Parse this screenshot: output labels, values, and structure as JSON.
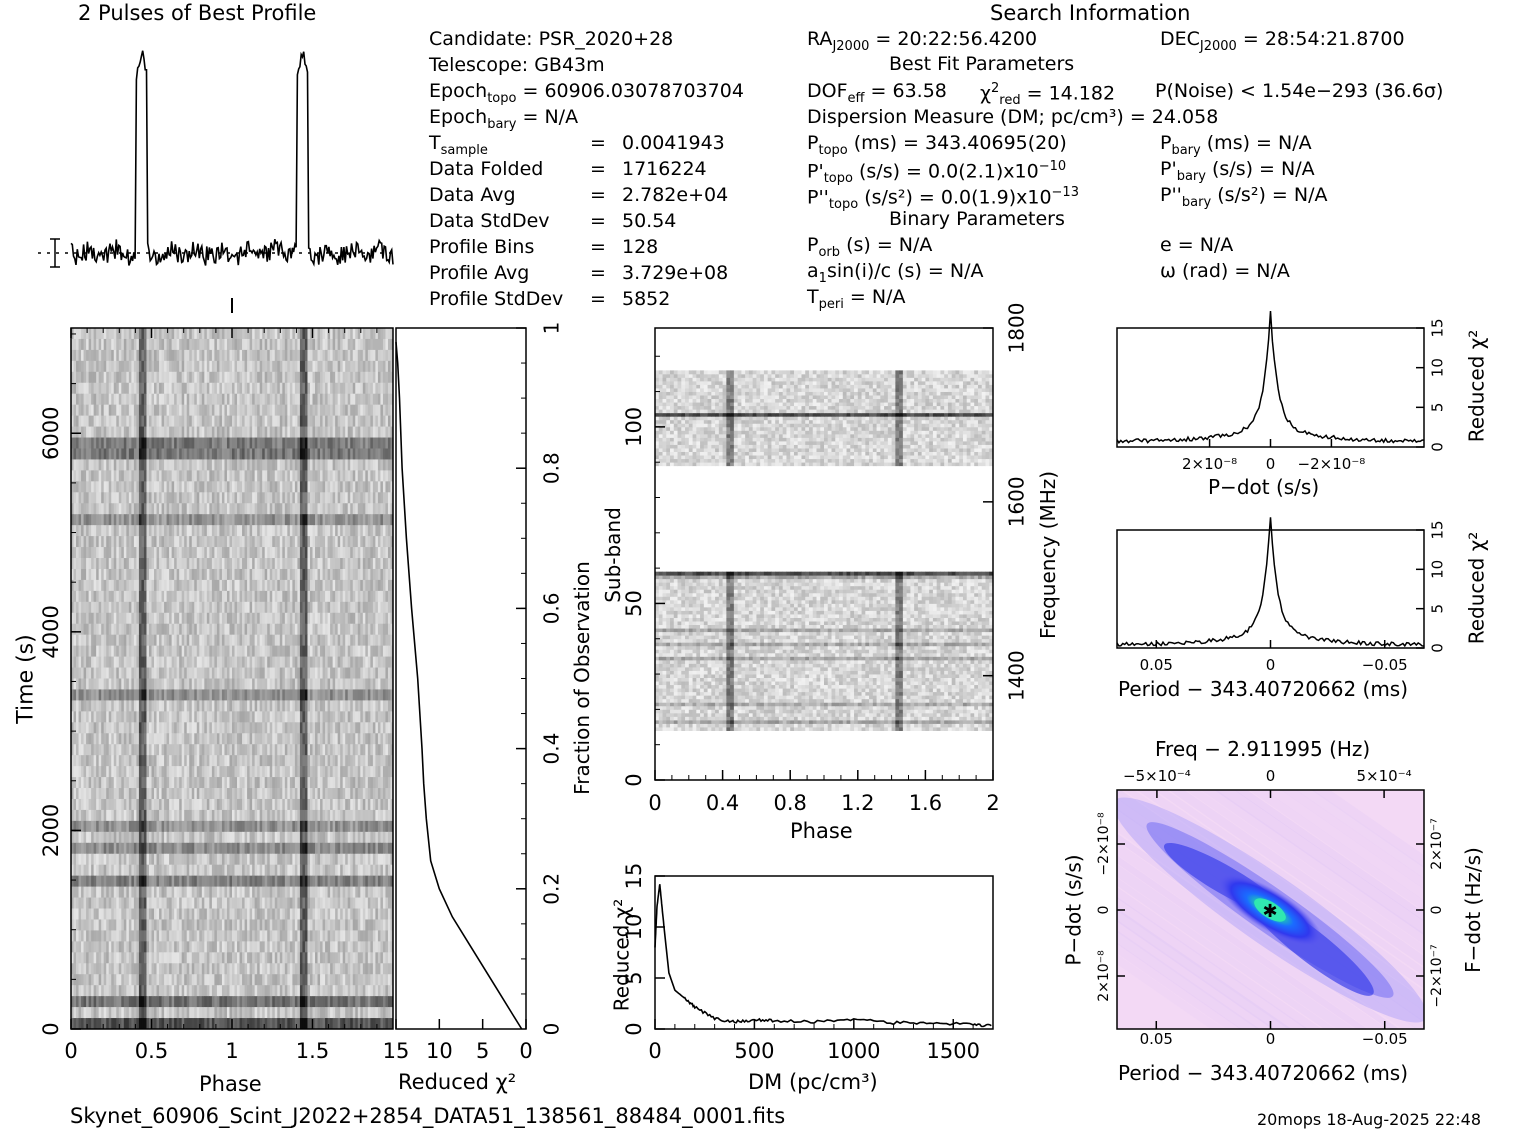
{
  "header": {
    "profile_title": "2 Pulses of Best Profile",
    "search_title": "Search Information"
  },
  "info": {
    "candidate": "Candidate:  PSR_2020+28",
    "telescope": "Telescope:  GB43m",
    "epoch_topo_label": "Epoch",
    "epoch_topo_sub": "topo",
    "epoch_topo_val": " = 60906.03078703704",
    "epoch_bary_label": "Epoch",
    "epoch_bary_sub": "bary",
    "epoch_bary_val": " = N/A",
    "rows": [
      {
        "label": "T",
        "sub": "sample",
        "val": "0.0041943"
      },
      {
        "label": "Data Folded",
        "sub": "",
        "val": "1716224"
      },
      {
        "label": "Data Avg",
        "sub": "",
        "val": "2.782e+04"
      },
      {
        "label": "Data StdDev",
        "sub": "",
        "val": "50.54"
      },
      {
        "label": "Profile Bins",
        "sub": "",
        "val": "128"
      },
      {
        "label": "Profile Avg",
        "sub": "",
        "val": "3.729e+08"
      },
      {
        "label": "Profile StdDev",
        "sub": "",
        "val": "5852"
      }
    ],
    "equals": "="
  },
  "search": {
    "ra_label": "RA",
    "ra_sub": "J2000",
    "ra_val": " = 20:22:56.4200",
    "dec_label": "DEC",
    "dec_sub": "J2000",
    "dec_val": " = 28:54:21.8700",
    "best_fit": "Best Fit Parameters",
    "dof_label": "DOF",
    "dof_sub": "eff",
    "dof_val": " = 63.58",
    "chi_label": "χ",
    "chi_sup": "2",
    "chi_sub": "red",
    "chi_val": " = 14.182",
    "pnoise": "P(Noise) < 1.54e−293   (36.6σ)",
    "dm": "Dispersion Measure (DM; pc/cm³) = 24.058",
    "ptopo_label": "P",
    "ptopo_sub": "topo",
    "ptopo_val": " (ms) =  343.40695(20)",
    "pbary_label": "P",
    "pbary_sub": "bary",
    "pbary_val": " (ms) = N/A",
    "pdtopo_label": "P'",
    "pdtopo_sub": "topo",
    "pdtopo_val": " (s/s) = 0.0(2.1)x10",
    "pdtopo_exp": "−10",
    "pdbary_label": "P'",
    "pdbary_sub": "bary",
    "pdbary_val": " (s/s) = N/A",
    "pddtopo_label": "P''",
    "pddtopo_sub": "topo",
    "pddtopo_val": " (s/s²) = 0.0(1.9)x10",
    "pddtopo_exp": "−13",
    "pddbary_label": "P''",
    "pddbary_sub": "bary",
    "pddbary_val": " (s/s²) = N/A",
    "binary": "Binary Parameters",
    "porb_label": "P",
    "porb_sub": "orb",
    "porb_val": " (s) = N/A",
    "e": "e = N/A",
    "a1": "a",
    "a1_sub": "1",
    "a1_val": "sin(i)/c (s) = N/A",
    "omega": "ω (rad) = N/A",
    "tperi_label": "T",
    "tperi_sub": "peri",
    "tperi_val": " = N/A"
  },
  "footer": {
    "filename": "Skynet_60906_Scint_J2022+2854_DATA51_138561_88484_0001.fits",
    "stamp": "20mops 18-Aug-2025 22:48"
  },
  "axes": {
    "time_ylabel": "Time (s)",
    "time_ticks": [
      "0",
      "2000",
      "4000",
      "6000"
    ],
    "phase_xlabel": "Phase",
    "phase_ticks": [
      "0",
      "0.5",
      "1",
      "1.5"
    ],
    "redchi_xlabel": "Reduced χ²",
    "redchi_ticks": [
      "15",
      "10",
      "5",
      "0"
    ],
    "frac_ylabel": "Fraction of Observation",
    "frac_ticks": [
      "0.2",
      "0.4",
      "0.6",
      "0.8",
      "1"
    ],
    "subband_ylabel": "Sub-band",
    "subband_ticks": [
      "0",
      "50",
      "100"
    ],
    "subband_xlabel": "Phase",
    "subband_xticks": [
      "0",
      "0.4",
      "0.8",
      "1.2",
      "1.6",
      "2"
    ],
    "freq_ylabel": "Frequency (MHz)",
    "freq_ticks": [
      "1400",
      "1600",
      "1800"
    ],
    "dm_xlabel": "DM (pc/cm³)",
    "dm_ticks": [
      "0",
      "500",
      "1000",
      "1500"
    ],
    "dm_ylabel": "Reduced χ²",
    "dm_yticks": [
      "0",
      "5",
      "10",
      "15"
    ],
    "pdot_xlabel": "P−dot (s/s)",
    "pdot_xticks": [
      "2×10⁻⁸",
      "0",
      "−2×10⁻⁸"
    ],
    "pdot_ylabel": "Reduced χ²",
    "pdot_yticks": [
      "0",
      "5",
      "10",
      "15"
    ],
    "period_xlabel": "Period − 343.40720662 (ms)",
    "period_xticks": [
      "0.05",
      "0",
      "−0.05"
    ],
    "period_ylabel": "Reduced χ²",
    "period_yticks": [
      "0",
      "5",
      "10",
      "15"
    ],
    "freq_title": "Freq − 2.911995 (Hz)",
    "freq_top_ticks": [
      "−5×10⁻⁴",
      "0",
      "5×10⁻⁴"
    ],
    "ppd_xlabel": "Period − 343.40720662 (ms)",
    "ppd_xticks": [
      "0.05",
      "0",
      "−0.05"
    ],
    "ppd_ylabel": "P−dot (s/s)",
    "ppd_yticks": [
      "−2×10⁻⁸",
      "0",
      "2×10⁻⁸"
    ],
    "ppd_rlabel": "F−dot (Hz/s)",
    "ppd_rticks": [
      "2×10⁻⁷",
      "0",
      "−2×10⁻⁷"
    ]
  },
  "chart_data": [
    {
      "type": "line",
      "title": "2 Pulses of Best Profile",
      "x_range": [
        0,
        2
      ],
      "pulse_phases": [
        0.44,
        1.44
      ]
    },
    {
      "type": "heatmap",
      "xlabel": "Phase",
      "ylabel": "Time (s)",
      "xlim": [
        0,
        2
      ],
      "ylim": [
        0,
        7060
      ]
    },
    {
      "type": "line",
      "xlabel": "Reduced χ²",
      "ylabel": "Fraction of Observation",
      "xlim": [
        15,
        0
      ],
      "ylim": [
        0,
        1
      ],
      "x": [
        0.5,
        1.5,
        3.5,
        6.5,
        8.5,
        10,
        11,
        11.5,
        11.8,
        12,
        12.5,
        13.2,
        13.8,
        14.3,
        14.6,
        14.8,
        15
      ],
      "y": [
        0.0,
        0.02,
        0.06,
        0.12,
        0.16,
        0.2,
        0.24,
        0.3,
        0.35,
        0.4,
        0.5,
        0.6,
        0.7,
        0.8,
        0.9,
        0.95,
        0.98
      ]
    },
    {
      "type": "heatmap",
      "xlabel": "Phase",
      "ylabel": "Sub-band",
      "xlim": [
        0,
        2
      ],
      "ylim": [
        0,
        128
      ],
      "y2label": "Frequency (MHz)",
      "y2lim": [
        1280,
        1800
      ]
    },
    {
      "type": "line",
      "xlabel": "DM (pc/cm³)",
      "ylabel": "Reduced χ²",
      "xlim": [
        0,
        1700
      ],
      "ylim": [
        0,
        15
      ],
      "x": [
        0,
        10,
        24,
        40,
        70,
        100,
        150,
        200,
        300,
        400,
        500,
        600,
        800,
        1000,
        1200,
        1400,
        1600,
        1700
      ],
      "y": [
        8,
        12,
        14.2,
        11,
        5.5,
        3.8,
        3.0,
        2.2,
        1.0,
        0.7,
        0.9,
        0.8,
        0.7,
        1.0,
        0.6,
        0.6,
        0.4,
        0.3
      ]
    },
    {
      "type": "line",
      "xlabel": "P−dot (s/s)",
      "ylabel": "Reduced χ²",
      "ylim": [
        0,
        15
      ],
      "x": [
        -1,
        -0.6,
        -0.3,
        -0.15,
        -0.05,
        0,
        0.05,
        0.15,
        0.3,
        0.6,
        1
      ],
      "y": [
        0.6,
        1.3,
        2.5,
        4.0,
        7.0,
        14.2,
        7.0,
        4.0,
        2.3,
        1.2,
        0.6
      ]
    },
    {
      "type": "line",
      "xlabel": "Period − 343.40720662 (ms)",
      "ylabel": "Reduced χ²",
      "xlim": [
        0.065,
        -0.065
      ],
      "ylim": [
        0,
        15
      ],
      "x": [
        0.065,
        0.04,
        0.02,
        0.01,
        0.005,
        0,
        -0.005,
        -0.01,
        -0.02,
        -0.04,
        -0.065
      ],
      "y": [
        0.3,
        0.6,
        1.5,
        3.5,
        6.5,
        14.2,
        6.5,
        3.0,
        1.2,
        0.5,
        0.3
      ]
    },
    {
      "type": "heatmap",
      "title": "Freq − 2.911995 (Hz)",
      "xlabel": "Period − 343.40720662 (ms)",
      "ylabel": "P−dot (s/s)",
      "xlim": [
        0.065,
        -0.065
      ]
    }
  ]
}
